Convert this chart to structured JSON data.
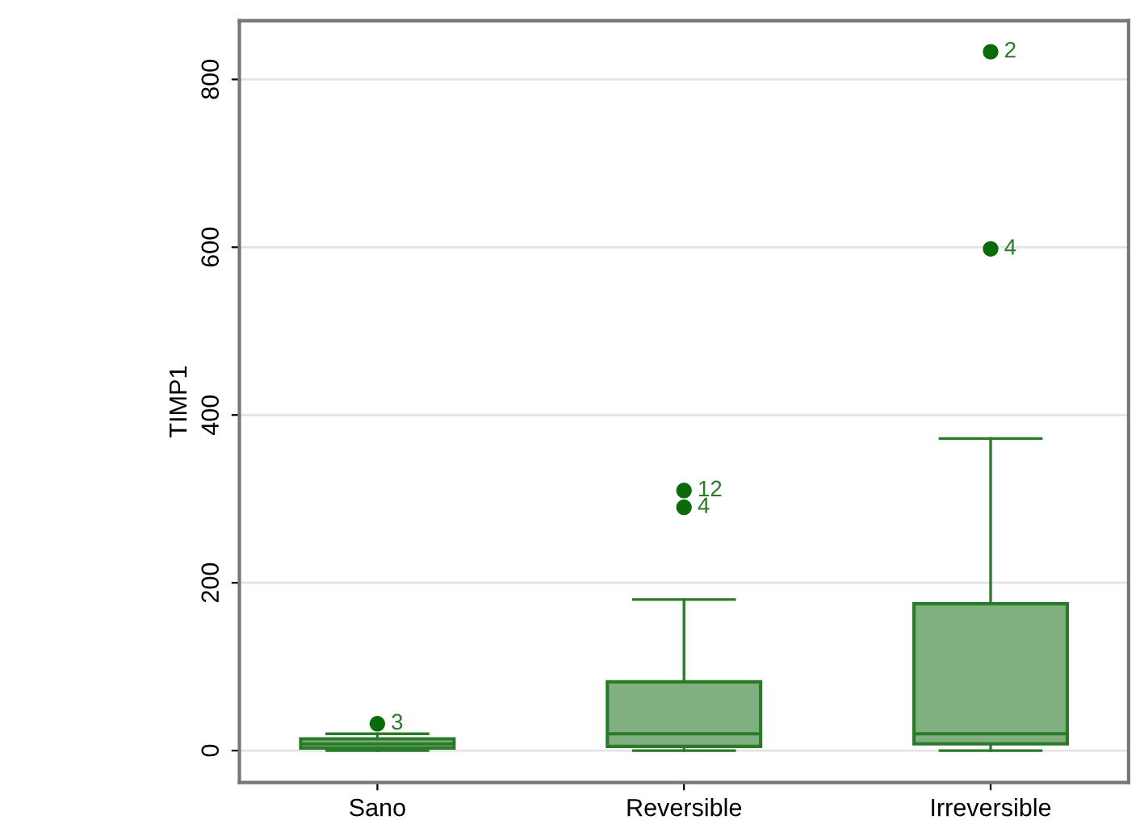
{
  "chart_data": {
    "type": "box",
    "ylabel": "TIMP1",
    "categories": [
      "Sano",
      "Reversible",
      "Irreversible"
    ],
    "boxes": [
      {
        "low": 0,
        "q1": 3,
        "median": 8,
        "q3": 14,
        "high": 20,
        "outliers": [
          32
        ]
      },
      {
        "low": 0,
        "q1": 5,
        "median": 20,
        "q3": 82,
        "high": 180,
        "outliers": [
          310,
          290
        ]
      },
      {
        "low": 0,
        "q1": 8,
        "median": 20,
        "q3": 175,
        "high": 372,
        "outliers": [
          833,
          598
        ]
      }
    ],
    "color": "#80b080",
    "ylim": [
      -38,
      870
    ],
    "yticks": [
      0,
      200,
      400,
      600,
      800
    ],
    "grid": "y",
    "annotations": [
      "3",
      "12",
      "4",
      "2",
      "4"
    ]
  }
}
